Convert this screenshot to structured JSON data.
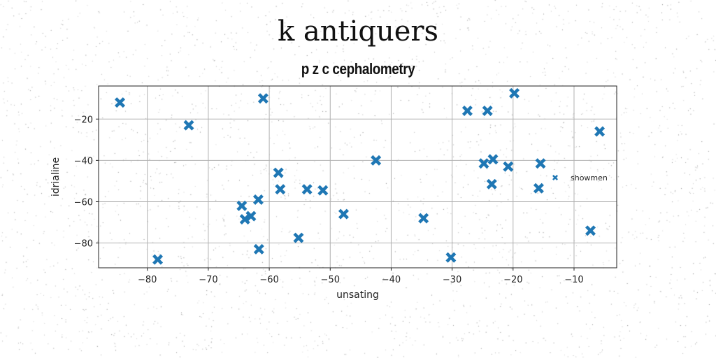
{
  "title": "k antiquers",
  "subtitle": "p z c cephalometry",
  "chart_data": {
    "type": "scatter",
    "xlabel": "unsating",
    "ylabel": "idrialine",
    "xlim": [
      -88,
      -3
    ],
    "ylim": [
      -92,
      -4
    ],
    "xticks": [
      -80,
      -70,
      -60,
      -50,
      -40,
      -30,
      -20,
      -10
    ],
    "yticks": [
      -20,
      -40,
      -60,
      -80
    ],
    "grid": true,
    "legend_position": "right",
    "marker": "X",
    "color": "#1f77b4",
    "series": [
      {
        "name": "showmen",
        "points": [
          [
            -84.5,
            -12
          ],
          [
            -78.3,
            -88
          ],
          [
            -73.2,
            -23
          ],
          [
            -61.0,
            -10
          ],
          [
            -58.5,
            -46
          ],
          [
            -58.2,
            -54
          ],
          [
            -61.8,
            -59
          ],
          [
            -64.5,
            -62
          ],
          [
            -63.0,
            -67
          ],
          [
            -64.0,
            -68.5
          ],
          [
            -61.7,
            -83
          ],
          [
            -55.2,
            -77.5
          ],
          [
            -53.8,
            -54
          ],
          [
            -51.2,
            -54.5
          ],
          [
            -47.8,
            -66
          ],
          [
            -42.5,
            -40
          ],
          [
            -34.7,
            -68
          ],
          [
            -30.2,
            -87
          ],
          [
            -27.5,
            -16
          ],
          [
            -24.2,
            -16
          ],
          [
            -19.8,
            -7.5
          ],
          [
            -23.3,
            -39.5
          ],
          [
            -24.8,
            -41.5
          ],
          [
            -23.5,
            -51.5
          ],
          [
            -20.8,
            -43
          ],
          [
            -15.5,
            -41.5
          ],
          [
            -15.8,
            -53.5
          ],
          [
            -7.3,
            -74
          ],
          [
            -5.8,
            -26
          ]
        ]
      }
    ]
  }
}
